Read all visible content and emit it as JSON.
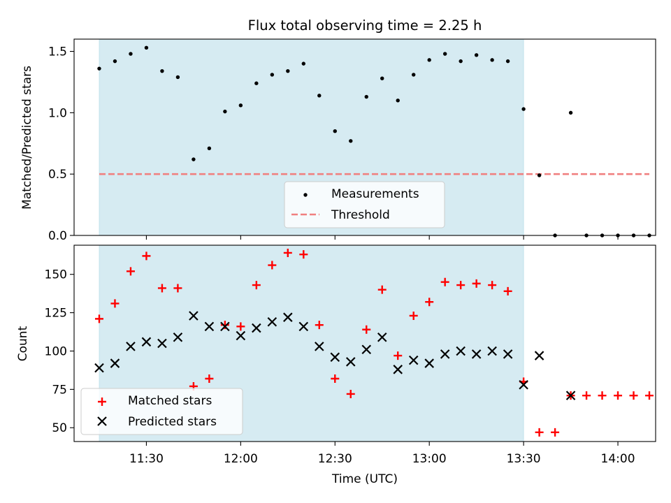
{
  "chart_data": [
    {
      "type": "scatter",
      "title": "Flux total observing time = 2.25 h",
      "ylabel": "Matched/Predicted stars",
      "xlabel": "",
      "xlim": [
        "11:07",
        "14:12"
      ],
      "ylim": [
        0,
        1.6
      ],
      "yticks": [
        0.0,
        0.5,
        1.0,
        1.5
      ],
      "ytick_labels": [
        "0.0",
        "0.5",
        "1.0",
        "1.5"
      ],
      "shaded_span": {
        "start": "11:15",
        "end": "13:30",
        "color": "#add8e6"
      },
      "grid": false,
      "legend_loc": "lower center",
      "series": [
        {
          "name": "Measurements",
          "kind": "points",
          "color": "#000000",
          "x": [
            "11:15",
            "11:20",
            "11:25",
            "11:30",
            "11:35",
            "11:40",
            "11:45",
            "11:50",
            "11:55",
            "12:00",
            "12:05",
            "12:10",
            "12:15",
            "12:20",
            "12:25",
            "12:30",
            "12:35",
            "12:40",
            "12:45",
            "12:50",
            "12:55",
            "13:00",
            "13:05",
            "13:10",
            "13:15",
            "13:20",
            "13:25",
            "13:30",
            "13:35",
            "13:40",
            "13:45",
            "13:50",
            "13:55",
            "14:00",
            "14:05",
            "14:10"
          ],
          "y": [
            1.36,
            1.42,
            1.48,
            1.53,
            1.34,
            1.29,
            0.62,
            0.71,
            1.01,
            1.06,
            1.24,
            1.31,
            1.34,
            1.4,
            1.14,
            0.85,
            0.77,
            1.13,
            1.28,
            1.1,
            1.31,
            1.43,
            1.48,
            1.42,
            1.47,
            1.43,
            1.42,
            1.03,
            0.49,
            0.0,
            1.0,
            0.0,
            0.0,
            0.0,
            0.0,
            0.0
          ]
        },
        {
          "name": "Threshold",
          "kind": "dashed-line",
          "color": "#f08080",
          "x": [
            "11:15",
            "14:10"
          ],
          "y": [
            0.5,
            0.5
          ]
        }
      ]
    },
    {
      "type": "scatter",
      "title": "",
      "ylabel": "Count",
      "xlabel": "Time (UTC)",
      "xlim": [
        "11:07",
        "14:12"
      ],
      "ylim": [
        41,
        169
      ],
      "yticks": [
        50,
        75,
        100,
        125,
        150
      ],
      "ytick_labels": [
        "50",
        "75",
        "100",
        "125",
        "150"
      ],
      "xticks": [
        "11:30",
        "12:00",
        "12:30",
        "13:00",
        "13:30",
        "14:00"
      ],
      "xtick_labels": [
        "11:30",
        "12:00",
        "12:30",
        "13:00",
        "13:30",
        "14:00"
      ],
      "shaded_span": {
        "start": "11:15",
        "end": "13:30",
        "color": "#add8e6"
      },
      "grid": false,
      "legend_loc": "lower left",
      "series": [
        {
          "name": "Matched stars",
          "marker": "plus",
          "color": "#ff0000",
          "x": [
            "11:15",
            "11:20",
            "11:25",
            "11:30",
            "11:35",
            "11:40",
            "11:45",
            "11:50",
            "11:55",
            "12:00",
            "12:05",
            "12:10",
            "12:15",
            "12:20",
            "12:25",
            "12:30",
            "12:35",
            "12:40",
            "12:45",
            "12:50",
            "12:55",
            "13:00",
            "13:05",
            "13:10",
            "13:15",
            "13:20",
            "13:25",
            "13:30",
            "13:35",
            "13:40",
            "13:45",
            "13:50",
            "13:55",
            "14:00",
            "14:05",
            "14:10"
          ],
          "y": [
            121,
            131,
            152,
            162,
            141,
            141,
            77,
            82,
            117,
            116,
            143,
            156,
            164,
            163,
            117,
            82,
            72,
            114,
            140,
            97,
            123,
            132,
            145,
            143,
            144,
            143,
            139,
            80,
            47,
            47,
            71,
            71,
            71,
            71,
            71,
            71
          ]
        },
        {
          "name": "Predicted stars",
          "marker": "x",
          "color": "#000000",
          "x": [
            "11:15",
            "11:20",
            "11:25",
            "11:30",
            "11:35",
            "11:40",
            "11:45",
            "11:50",
            "11:55",
            "12:00",
            "12:05",
            "12:10",
            "12:15",
            "12:20",
            "12:25",
            "12:30",
            "12:35",
            "12:40",
            "12:45",
            "12:50",
            "12:55",
            "13:00",
            "13:05",
            "13:10",
            "13:15",
            "13:20",
            "13:25",
            "13:30",
            "13:35",
            "13:45"
          ],
          "y": [
            89,
            92,
            103,
            106,
            105,
            109,
            123,
            116,
            116,
            110,
            115,
            119,
            122,
            116,
            103,
            96,
            93,
            101,
            109,
            88,
            94,
            92,
            98,
            100,
            98,
            100,
            98,
            78,
            97,
            71
          ]
        }
      ]
    }
  ]
}
